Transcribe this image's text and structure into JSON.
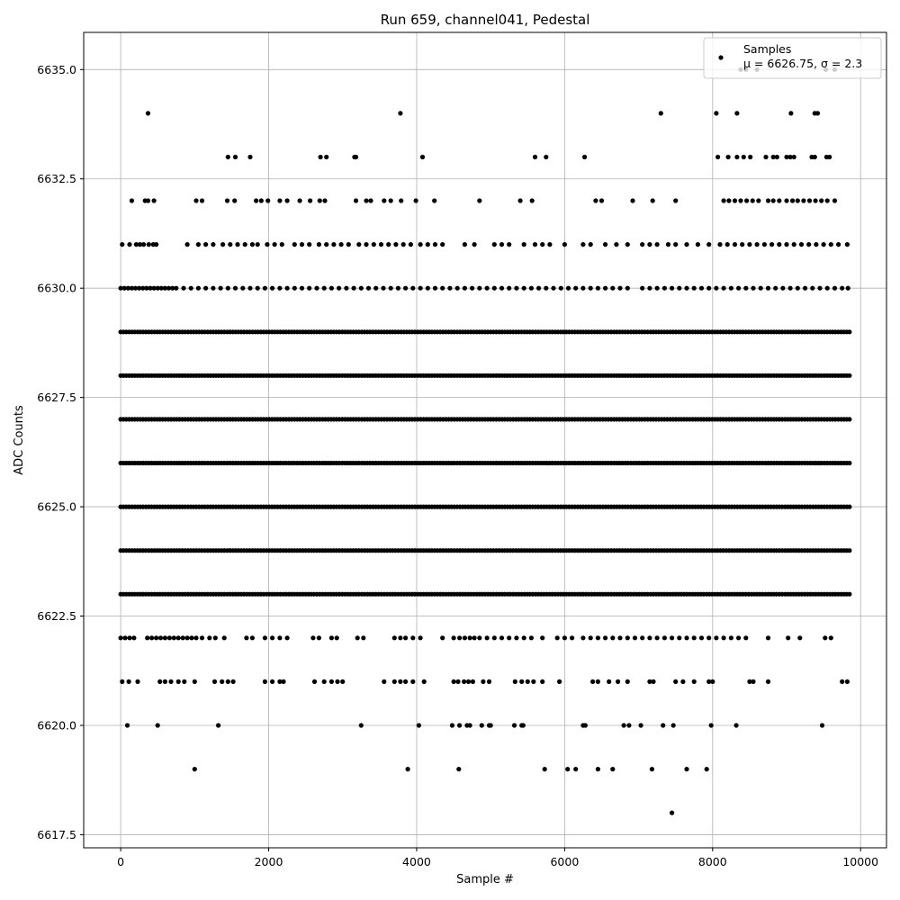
{
  "chart_data": {
    "type": "scatter",
    "title": "Run 659, channel041, Pedestal",
    "xlabel": "Sample #",
    "ylabel": "ADC Counts",
    "xlim": [
      -500,
      10350
    ],
    "ylim": [
      6617.2,
      6635.85
    ],
    "x_ticks": [
      0,
      2000,
      4000,
      6000,
      8000,
      10000
    ],
    "x_tick_labels": [
      "0",
      "2000",
      "4000",
      "6000",
      "8000",
      "10000"
    ],
    "y_ticks": [
      6617.5,
      6620.0,
      6622.5,
      6625.0,
      6627.5,
      6630.0,
      6632.5,
      6635.0
    ],
    "y_tick_labels": [
      "6617.5",
      "6620.0",
      "6622.5",
      "6625.0",
      "6627.5",
      "6630.0",
      "6632.5",
      "6635.0"
    ],
    "grid": true,
    "legend_position": "top-right",
    "series": [
      {
        "name": "Samples",
        "label_line2": "μ = 6626.75, σ = 2.3",
        "color": "#000000",
        "marker": "circle",
        "mean": 6626.75,
        "sigma": 2.3,
        "n_samples": 9850,
        "x_range": [
          0,
          9850
        ],
        "levels": [
          {
            "y": 6635,
            "x": [
              8380,
              8450,
              8600,
              9530,
              9650
            ]
          },
          {
            "y": 6634,
            "x": [
              370,
              3780,
              7300,
              8050,
              8330,
              9060,
              9380,
              9420
            ]
          },
          {
            "y": 6633,
            "x": [
              1450,
              1550,
              1750,
              2700,
              2780,
              3160,
              3180,
              4080,
              5600,
              5750,
              6270,
              8070,
              8210,
              8330,
              8420,
              8510,
              8720,
              8820,
              8870,
              9000,
              9050,
              9100,
              9340,
              9380,
              9540,
              9580
            ]
          },
          {
            "y": 6632,
            "x": [
              150,
              330,
              370,
              450,
              1020,
              1100,
              1440,
              1540,
              1830,
              1900,
              1990,
              2150,
              2250,
              2420,
              2560,
              2690,
              2760,
              3180,
              3320,
              3380,
              3560,
              3650,
              3790,
              3990,
              4240,
              4850,
              5400,
              5560,
              6420,
              6500,
              6920,
              7190,
              7500,
              8150,
              8220,
              8300,
              8380,
              8460,
              8540,
              8620,
              8750,
              8820,
              8900,
              9000,
              9080,
              9150,
              9230,
              9310,
              9390,
              9470,
              9550,
              9650
            ]
          },
          {
            "y": 6631,
            "x": [
              20,
              120,
              210,
              260,
              310,
              380,
              440,
              480,
              900,
              1050,
              1150,
              1250,
              1380,
              1480,
              1580,
              1680,
              1780,
              1850,
              1980,
              2080,
              2180,
              2350,
              2450,
              2550,
              2680,
              2780,
              2880,
              2980,
              3080,
              3220,
              3320,
              3420,
              3520,
              3620,
              3720,
              3820,
              3920,
              4050,
              4150,
              4250,
              4350,
              4650,
              4780,
              5050,
              5150,
              5250,
              5450,
              5600,
              5700,
              5800,
              6000,
              6250,
              6350,
              6550,
              6700,
              6850,
              7050,
              7150,
              7250,
              7400,
              7500,
              7650,
              7800,
              7950,
              8100,
              8200,
              8300,
              8400,
              8500,
              8600,
              8700,
              8800,
              8900,
              9000,
              9100,
              9200,
              9300,
              9400,
              9500,
              9600,
              9700,
              9820
            ]
          },
          {
            "y": 6630,
            "x": [
              0,
              50,
              100,
              150,
              200,
              250,
              300,
              350,
              400,
              450,
              500,
              550,
              600,
              650,
              700,
              750,
              850,
              950,
              1050,
              1150,
              1250,
              1350,
              1450,
              1550,
              1650,
              1750,
              1850,
              1950,
              2050,
              2150,
              2250,
              2350,
              2450,
              2550,
              2650,
              2750,
              2850,
              2950,
              3050,
              3150,
              3250,
              3350,
              3450,
              3550,
              3650,
              3750,
              3850,
              3950,
              4050,
              4150,
              4250,
              4350,
              4450,
              4550,
              4650,
              4750,
              4850,
              4950,
              5050,
              5150,
              5250,
              5350,
              5450,
              5550,
              5650,
              5750,
              5850,
              5950,
              6050,
              6150,
              6250,
              6350,
              6450,
              6550,
              6650,
              6750,
              6850,
              7050,
              7150,
              7250,
              7350,
              7450,
              7550,
              7650,
              7750,
              7850,
              7950,
              8050,
              8150,
              8250,
              8350,
              8450,
              8550,
              8650,
              8750,
              8850,
              8950,
              9050,
              9150,
              9250,
              9350,
              9450,
              9550,
              9650,
              9750,
              9830
            ]
          },
          {
            "y": 6629,
            "density": "continuous",
            "x_range": [
              0,
              9850
            ]
          },
          {
            "y": 6628,
            "density": "continuous",
            "x_range": [
              0,
              9850
            ]
          },
          {
            "y": 6627,
            "density": "continuous",
            "x_range": [
              0,
              9850
            ]
          },
          {
            "y": 6626,
            "density": "continuous",
            "x_range": [
              0,
              9850
            ]
          },
          {
            "y": 6625,
            "density": "continuous",
            "x_range": [
              0,
              9850
            ]
          },
          {
            "y": 6624,
            "density": "continuous",
            "x_range": [
              0,
              9850
            ]
          },
          {
            "y": 6623,
            "density": "continuous",
            "x_range": [
              0,
              9850
            ]
          },
          {
            "y": 6622,
            "x": [
              0,
              60,
              120,
              180,
              360,
              420,
              480,
              540,
              600,
              660,
              720,
              780,
              840,
              900,
              960,
              1020,
              1100,
              1200,
              1280,
              1400,
              1700,
              1780,
              1950,
              2050,
              2150,
              2250,
              2600,
              2680,
              2850,
              2920,
              3200,
              3280,
              3700,
              3780,
              3850,
              3950,
              4050,
              4350,
              4500,
              4580,
              4650,
              4720,
              4780,
              4850,
              4950,
              5050,
              5150,
              5250,
              5350,
              5450,
              5550,
              5700,
              5900,
              6000,
              6100,
              6250,
              6350,
              6450,
              6550,
              6650,
              6750,
              6850,
              6950,
              7050,
              7150,
              7250,
              7350,
              7450,
              7550,
              7650,
              7750,
              7850,
              7950,
              8050,
              8150,
              8250,
              8350,
              8450,
              8750,
              9020,
              9180,
              9520,
              9600
            ]
          },
          {
            "y": 6621,
            "x": [
              20,
              110,
              230,
              530,
              600,
              680,
              780,
              860,
              1000,
              1270,
              1370,
              1450,
              1520,
              1950,
              2050,
              2150,
              2200,
              2620,
              2750,
              2850,
              2930,
              3000,
              3560,
              3700,
              3780,
              3850,
              3950,
              4100,
              4500,
              4560,
              4640,
              4700,
              4760,
              4900,
              4980,
              5330,
              5420,
              5500,
              5580,
              5700,
              5930,
              6380,
              6450,
              6600,
              6720,
              6850,
              7150,
              7200,
              7500,
              7600,
              7750,
              7950,
              8000,
              8500,
              8550,
              8750,
              9750,
              9820
            ]
          },
          {
            "y": 6620,
            "x": [
              90,
              500,
              1320,
              3250,
              4030,
              4480,
              4580,
              4680,
              4720,
              4880,
              4980,
              5000,
              5320,
              5420,
              5440,
              6250,
              6280,
              6800,
              6870,
              7030,
              7330,
              7470,
              7980,
              8320,
              9480
            ]
          },
          {
            "y": 6619,
            "x": [
              1000,
              3880,
              4570,
              5730,
              6040,
              6150,
              6450,
              6650,
              7180,
              7650,
              7920
            ]
          },
          {
            "y": 6618,
            "x": [
              7450
            ]
          }
        ]
      }
    ]
  }
}
